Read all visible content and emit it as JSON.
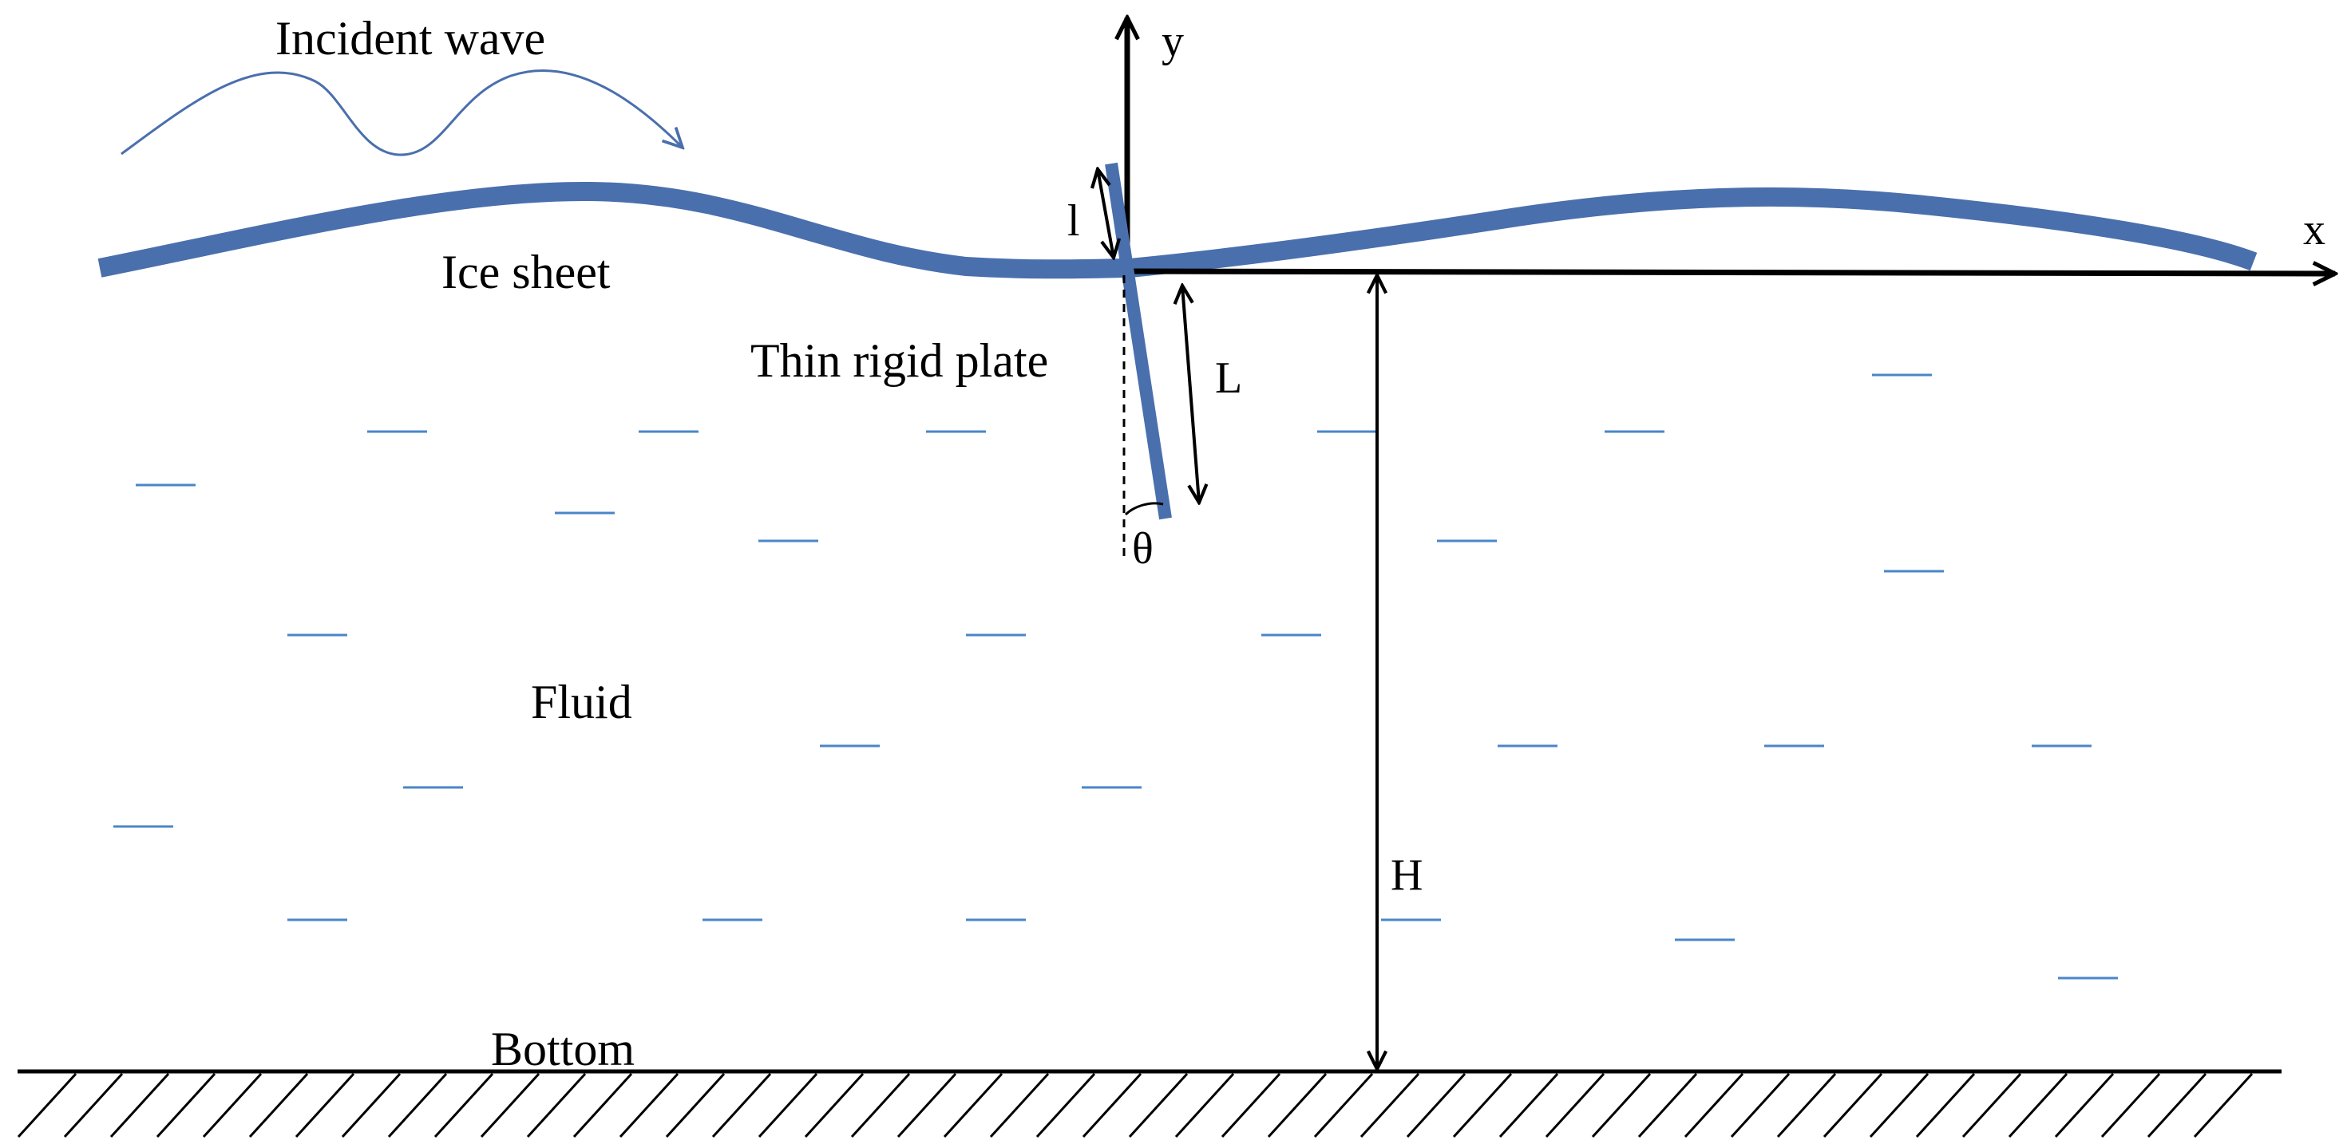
{
  "labels": {
    "incident_wave": "Incident wave",
    "ice_sheet": "Ice sheet",
    "thin_rigid_plate": "Thin rigid plate",
    "fluid": "Fluid",
    "bottom": "Bottom",
    "axis_x": "x",
    "axis_y": "y",
    "plate_upper_length": "l",
    "plate_lower_length": "L",
    "angle": "θ",
    "depth": "H"
  },
  "colors": {
    "ice_sheet": "#4a6fad",
    "plate": "#4a6fad",
    "fluid_dash": "#4a86c8",
    "wave_arrow": "#4a6fad",
    "lines": "#000000"
  }
}
